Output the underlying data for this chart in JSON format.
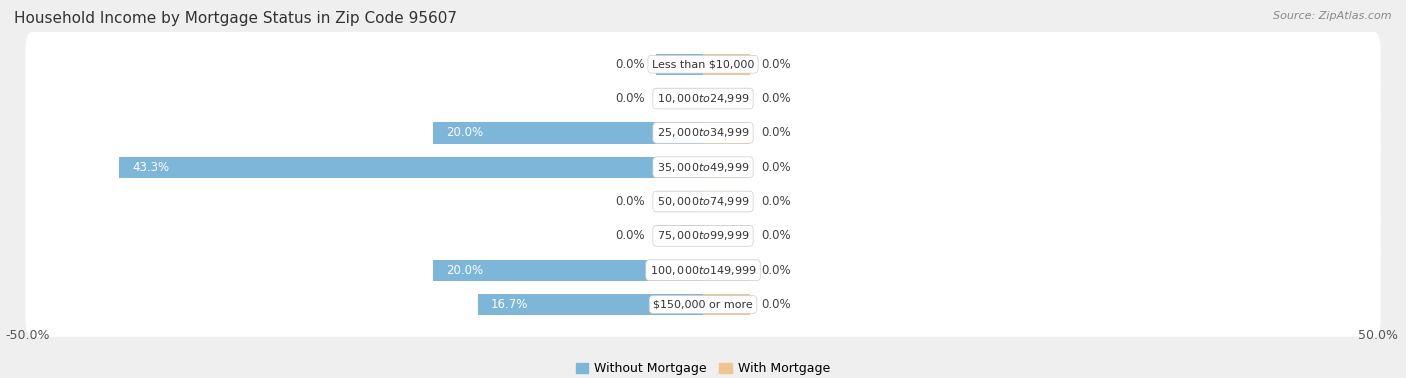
{
  "title": "Household Income by Mortgage Status in Zip Code 95607",
  "source": "Source: ZipAtlas.com",
  "categories": [
    "Less than $10,000",
    "$10,000 to $24,999",
    "$25,000 to $34,999",
    "$35,000 to $49,999",
    "$50,000 to $74,999",
    "$75,000 to $99,999",
    "$100,000 to $149,999",
    "$150,000 or more"
  ],
  "without_mortgage": [
    0.0,
    0.0,
    20.0,
    43.3,
    0.0,
    0.0,
    20.0,
    16.7
  ],
  "with_mortgage": [
    0.0,
    0.0,
    0.0,
    0.0,
    0.0,
    0.0,
    0.0,
    0.0
  ],
  "without_mortgage_color": "#7EB6D9",
  "with_mortgage_color": "#F0C490",
  "row_bg_color": "#FFFFFF",
  "outer_bg_color": "#EFEFEF",
  "xlim_left": -50.0,
  "xlim_right": 50.0,
  "zero_stub": 3.5,
  "legend_labels": [
    "Without Mortgage",
    "With Mortgage"
  ],
  "title_fontsize": 11,
  "source_fontsize": 8,
  "axis_fontsize": 9,
  "label_fontsize": 8.5,
  "category_fontsize": 8
}
